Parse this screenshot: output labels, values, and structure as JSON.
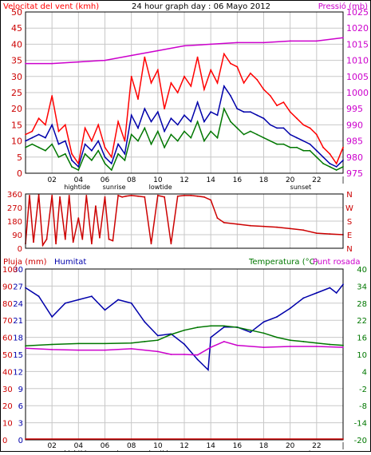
{
  "chart_data": [
    {
      "type": "line",
      "title": "24 hour graph day : 06 Mayo 2012",
      "ylabel_left": "Velocitat del vent (kmh)",
      "ylabel_right": "Pressió (mb)",
      "y_left_ticks": [
        "0",
        "5",
        "10",
        "15",
        "20",
        "25",
        "30",
        "35",
        "40",
        "45",
        "50"
      ],
      "y_right_ticks": [
        "975",
        "980",
        "985",
        "990",
        "995",
        "1000",
        "1005",
        "1010",
        "1015",
        "1020",
        "1025"
      ],
      "ylim_left": [
        0,
        50
      ],
      "ylim_right": [
        975,
        1025
      ],
      "x_ticks": [
        "02",
        "04",
        "06",
        "08",
        "10",
        "12",
        "14",
        "16",
        "18",
        "20",
        "22",
        "|"
      ],
      "x_events": [
        {
          "label": "hightide",
          "x": 3.9
        },
        {
          "label": "sunrise",
          "x": 6.7
        },
        {
          "label": "lowtide",
          "x": 10.2
        },
        {
          "label": "sunset",
          "x": 20.8
        }
      ],
      "colors": {
        "gust": "#ff0000",
        "avg": "#0000aa",
        "wind_low": "#007700",
        "pressure": "#cc00cc"
      },
      "series": [
        {
          "key": "gust",
          "x": [
            0,
            0.5,
            1,
            1.5,
            2,
            2.5,
            3,
            3.5,
            4,
            4.5,
            5,
            5.5,
            6,
            6.5,
            7,
            7.5,
            8,
            8.5,
            9,
            9.5,
            10,
            10.5,
            11,
            11.5,
            12,
            12.5,
            13,
            13.5,
            14,
            14.5,
            15,
            15.5,
            16,
            16.5,
            17,
            17.5,
            18,
            18.5,
            19,
            19.5,
            20,
            20.5,
            21,
            21.5,
            22,
            22.5,
            23,
            23.5,
            24
          ],
          "values": [
            12,
            13,
            17,
            15,
            24,
            13,
            15,
            6,
            3,
            14,
            10,
            15,
            8,
            5,
            16,
            10,
            30,
            23,
            36,
            28,
            32,
            20,
            28,
            25,
            30,
            27,
            36,
            26,
            32,
            28,
            37,
            34,
            33,
            28,
            31,
            29,
            26,
            24,
            21,
            22,
            19,
            17,
            15,
            14,
            12,
            8,
            6,
            3,
            8
          ]
        },
        {
          "key": "avg",
          "x": [
            0,
            0.5,
            1,
            1.5,
            2,
            2.5,
            3,
            3.5,
            4,
            4.5,
            5,
            5.5,
            6,
            6.5,
            7,
            7.5,
            8,
            8.5,
            9,
            9.5,
            10,
            10.5,
            11,
            11.5,
            12,
            12.5,
            13,
            13.5,
            14,
            14.5,
            15,
            15.5,
            16,
            16.5,
            17,
            17.5,
            18,
            18.5,
            19,
            19.5,
            20,
            20.5,
            21,
            21.5,
            22,
            22.5,
            23,
            23.5,
            24
          ],
          "values": [
            10,
            11,
            12,
            11,
            15,
            9,
            10,
            4,
            2,
            9,
            7,
            10,
            5,
            3,
            9,
            6,
            18,
            14,
            20,
            16,
            19,
            13,
            17,
            15,
            18,
            16,
            22,
            16,
            19,
            18,
            27,
            24,
            20,
            19,
            19,
            18,
            17,
            15,
            14,
            14,
            12,
            11,
            10,
            9,
            7,
            5,
            3,
            2,
            4
          ]
        },
        {
          "key": "wind_low",
          "x": [
            0,
            0.5,
            1,
            1.5,
            2,
            2.5,
            3,
            3.5,
            4,
            4.5,
            5,
            5.5,
            6,
            6.5,
            7,
            7.5,
            8,
            8.5,
            9,
            9.5,
            10,
            10.5,
            11,
            11.5,
            12,
            12.5,
            13,
            13.5,
            14,
            14.5,
            15,
            15.5,
            16,
            16.5,
            17,
            17.5,
            18,
            18.5,
            19,
            19.5,
            20,
            20.5,
            21,
            21.5,
            22,
            22.5,
            23,
            23.5,
            24
          ],
          "values": [
            8,
            9,
            8,
            7,
            9,
            5,
            6,
            2,
            1,
            6,
            4,
            7,
            3,
            1,
            6,
            4,
            12,
            10,
            14,
            9,
            13,
            8,
            12,
            10,
            13,
            11,
            16,
            10,
            13,
            11,
            20,
            16,
            14,
            12,
            13,
            12,
            11,
            10,
            9,
            9,
            8,
            8,
            7,
            7,
            5,
            3,
            2,
            1,
            2
          ]
        },
        {
          "key": "pressure",
          "x": [
            0,
            2,
            4,
            6,
            8,
            10,
            12,
            14,
            16,
            18,
            20,
            22,
            24
          ],
          "values": [
            1009,
            1009,
            1009.5,
            1010,
            1011.5,
            1013,
            1014.5,
            1015,
            1015.5,
            1015.5,
            1016,
            1016,
            1017
          ]
        }
      ]
    },
    {
      "type": "line",
      "y_left_ticks": [
        "360",
        "270",
        "180",
        "90",
        "0"
      ],
      "y_right_ticks": [
        "N",
        "W",
        "S",
        "E",
        "N"
      ],
      "ylim": [
        0,
        360
      ],
      "color": "#cc0000",
      "series": [
        {
          "key": "wind_dir",
          "x": [
            0,
            0.3,
            0.6,
            1,
            1.3,
            1.6,
            2,
            2.3,
            2.6,
            3,
            3.3,
            3.6,
            4,
            4.3,
            4.6,
            5,
            5.3,
            5.6,
            6,
            6.3,
            6.6,
            7,
            7.3,
            7.6,
            8,
            8.5,
            9,
            9.5,
            10,
            10.5,
            11,
            11.5,
            12,
            12.5,
            13,
            13.5,
            14,
            14.5,
            15,
            16,
            17,
            18,
            19,
            20,
            21,
            22,
            23,
            24
          ],
          "values": [
            30,
            350,
            40,
            355,
            20,
            60,
            350,
            30,
            340,
            60,
            350,
            40,
            200,
            60,
            350,
            30,
            280,
            70,
            340,
            60,
            50,
            350,
            340,
            345,
            350,
            345,
            340,
            30,
            350,
            340,
            30,
            345,
            350,
            350,
            345,
            340,
            320,
            200,
            170,
            160,
            150,
            145,
            140,
            130,
            120,
            100,
            95,
            90
          ]
        }
      ]
    },
    {
      "type": "line",
      "title_left": "Pluja (mm)",
      "title_humidity": "Humitat",
      "title_temperature": "Temperatura (°C)",
      "title_dewpoint": "Punt rosada",
      "y_rain_ticks": [
        "100",
        "90",
        "80",
        "70",
        "60",
        "50",
        "40",
        "30",
        "20",
        "10",
        "0"
      ],
      "y_left_ticks": [
        "30",
        "27",
        "24",
        "21",
        "18",
        "15",
        "12",
        "9",
        "6",
        "3",
        "0"
      ],
      "y_right_ticks": [
        "40",
        "34",
        "28",
        "22",
        "16",
        "10",
        "4",
        "-2",
        "-8",
        "-14",
        "-20"
      ],
      "ylim_left": [
        0,
        30
      ],
      "ylim_right": [
        -20,
        40
      ],
      "colors": {
        "rain": "#cc0000",
        "humidity": "#0000aa",
        "temperature": "#007700",
        "dewpoint": "#cc00cc"
      },
      "series": [
        {
          "key": "humidity",
          "x": [
            0,
            1,
            2,
            3,
            4,
            5,
            6,
            7,
            8,
            9,
            10,
            11,
            12,
            13,
            13.8,
            14,
            15,
            16,
            17,
            18,
            19,
            20,
            21,
            22,
            23,
            23.5,
            24
          ],
          "values": [
            89,
            84,
            72,
            80,
            82,
            84,
            76,
            82,
            80,
            69,
            61,
            62,
            56,
            47,
            41,
            60,
            66,
            66,
            63,
            69,
            72,
            77,
            83,
            86,
            89,
            86,
            91
          ]
        },
        {
          "key": "temperature",
          "x": [
            0,
            2,
            4,
            6,
            8,
            9,
            10,
            11,
            12,
            13,
            14,
            15,
            16,
            17,
            18,
            19,
            20,
            21,
            22,
            23,
            24
          ],
          "values": [
            13,
            13.5,
            13.8,
            13.8,
            14,
            14.5,
            15,
            17,
            18.5,
            19.5,
            20,
            20,
            19.5,
            18.5,
            17.5,
            16,
            15,
            14.5,
            14,
            13.5,
            13.2
          ]
        },
        {
          "key": "dewpoint",
          "x": [
            0,
            2,
            4,
            6,
            8,
            10,
            11,
            12,
            13,
            14,
            15,
            16,
            18,
            20,
            22,
            24
          ],
          "values": [
            12.2,
            11.7,
            11.5,
            11.5,
            12,
            11,
            10,
            10,
            9.8,
            12.5,
            14.5,
            13.2,
            12.5,
            12.8,
            12.8,
            12.5
          ]
        },
        {
          "key": "rain",
          "x": [
            0,
            24
          ],
          "values": [
            0,
            0
          ]
        }
      ]
    }
  ]
}
